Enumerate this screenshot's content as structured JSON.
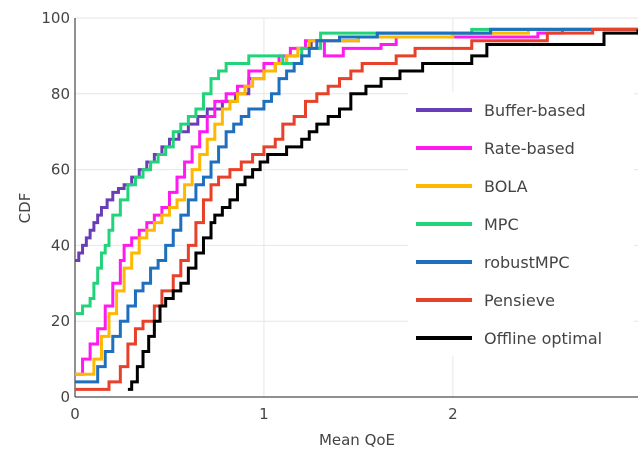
{
  "chart_data": {
    "type": "line",
    "line_shape": "step",
    "xlabel": "Mean QoE",
    "ylabel": "CDF",
    "xlim": [
      0,
      2.98
    ],
    "ylim": [
      0,
      100
    ],
    "x_ticks": [
      "0",
      "1",
      "2"
    ],
    "y_ticks": [
      "0",
      "20",
      "40",
      "60",
      "80",
      "100"
    ],
    "x_tick_values": [
      0,
      1,
      2
    ],
    "y_tick_values": [
      0,
      20,
      40,
      60,
      80,
      100
    ],
    "grid": true,
    "legend_position": "right",
    "series": [
      {
        "name": "Buffer-based",
        "color": "#6a3db8",
        "x": [
          0,
          0.02,
          0.04,
          0.06,
          0.08,
          0.1,
          0.12,
          0.14,
          0.17,
          0.2,
          0.23,
          0.26,
          0.3,
          0.34,
          0.38,
          0.42,
          0.46,
          0.5,
          0.55,
          0.6,
          0.65,
          0.7,
          0.78,
          0.85,
          0.92,
          1.0,
          1.06,
          1.12,
          1.18,
          1.25,
          1.5,
          1.6,
          2.2,
          2.45
        ],
        "y": [
          36,
          38,
          40,
          42,
          44,
          46,
          48,
          50,
          52,
          54,
          55,
          56,
          58,
          60,
          62,
          64,
          66,
          68,
          70,
          72,
          74,
          76,
          78,
          80,
          84,
          86,
          88,
          90,
          92,
          94,
          95,
          96,
          97,
          97
        ]
      },
      {
        "name": "Rate-based",
        "color": "#ff1af0",
        "x": [
          0,
          0.04,
          0.08,
          0.12,
          0.16,
          0.2,
          0.24,
          0.26,
          0.3,
          0.34,
          0.38,
          0.42,
          0.46,
          0.5,
          0.54,
          0.58,
          0.62,
          0.66,
          0.7,
          0.74,
          0.8,
          0.86,
          0.92,
          1.0,
          1.08,
          1.14,
          1.22,
          1.32,
          1.42,
          1.62,
          1.7,
          2.0,
          2.45,
          2.58
        ],
        "y": [
          6,
          10,
          14,
          18,
          24,
          30,
          36,
          40,
          42,
          44,
          46,
          48,
          50,
          54,
          58,
          62,
          66,
          70,
          74,
          78,
          80,
          82,
          86,
          88,
          90,
          92,
          94,
          90,
          92,
          93,
          95,
          95,
          96,
          97
        ]
      },
      {
        "name": "BOLA",
        "color": "#ffb800",
        "x": [
          0,
          0.1,
          0.14,
          0.18,
          0.22,
          0.26,
          0.3,
          0.34,
          0.38,
          0.42,
          0.46,
          0.5,
          0.54,
          0.58,
          0.62,
          0.66,
          0.7,
          0.74,
          0.78,
          0.82,
          0.86,
          0.9,
          0.94,
          1.0,
          1.06,
          1.12,
          1.18,
          1.24,
          1.5,
          2.0,
          2.2,
          2.4
        ],
        "y": [
          6,
          10,
          16,
          22,
          28,
          34,
          38,
          42,
          44,
          46,
          48,
          50,
          52,
          56,
          60,
          64,
          68,
          72,
          76,
          78,
          80,
          82,
          84,
          86,
          88,
          90,
          92,
          94,
          95,
          96,
          96,
          97
        ]
      },
      {
        "name": "MPC",
        "color": "#22d37a",
        "x": [
          0,
          0.04,
          0.08,
          0.1,
          0.12,
          0.14,
          0.16,
          0.18,
          0.2,
          0.24,
          0.28,
          0.32,
          0.36,
          0.4,
          0.44,
          0.48,
          0.52,
          0.56,
          0.6,
          0.64,
          0.68,
          0.72,
          0.76,
          0.8,
          0.86,
          0.92,
          1.0,
          1.1,
          1.2,
          1.3,
          2.06,
          2.1
        ],
        "y": [
          22,
          24,
          26,
          30,
          34,
          38,
          40,
          44,
          48,
          52,
          56,
          58,
          60,
          62,
          64,
          66,
          70,
          72,
          74,
          76,
          80,
          84,
          86,
          88,
          88,
          90,
          90,
          88,
          92,
          96,
          96,
          97
        ]
      },
      {
        "name": "robustMPC",
        "color": "#1f6fbf",
        "x": [
          0,
          0.12,
          0.16,
          0.2,
          0.24,
          0.28,
          0.32,
          0.36,
          0.4,
          0.44,
          0.48,
          0.52,
          0.56,
          0.6,
          0.64,
          0.68,
          0.72,
          0.76,
          0.8,
          0.84,
          0.88,
          0.92,
          1.0,
          1.04,
          1.08,
          1.12,
          1.16,
          1.2,
          1.24,
          1.28,
          1.4,
          1.6,
          2.2
        ],
        "y": [
          4,
          8,
          12,
          16,
          20,
          24,
          28,
          30,
          34,
          36,
          40,
          44,
          48,
          52,
          56,
          58,
          62,
          66,
          70,
          72,
          74,
          76,
          78,
          80,
          84,
          86,
          88,
          90,
          92,
          94,
          95,
          96,
          97
        ]
      },
      {
        "name": "Pensieve",
        "color": "#e8412a",
        "x": [
          0,
          0.18,
          0.24,
          0.28,
          0.32,
          0.36,
          0.42,
          0.46,
          0.52,
          0.56,
          0.6,
          0.64,
          0.68,
          0.72,
          0.76,
          0.82,
          0.88,
          0.94,
          1.0,
          1.06,
          1.1,
          1.16,
          1.22,
          1.28,
          1.34,
          1.4,
          1.46,
          1.52,
          1.6,
          1.7,
          1.8,
          2.1,
          2.5,
          2.74,
          2.8
        ],
        "y": [
          2,
          4,
          8,
          14,
          18,
          20,
          24,
          28,
          32,
          36,
          40,
          46,
          52,
          56,
          58,
          60,
          62,
          64,
          66,
          68,
          72,
          74,
          78,
          80,
          82,
          84,
          86,
          88,
          88,
          90,
          92,
          94,
          96,
          97,
          97
        ]
      },
      {
        "name": "Offline optimal",
        "color": "#000000",
        "x": [
          0.28,
          0.3,
          0.33,
          0.36,
          0.39,
          0.42,
          0.45,
          0.48,
          0.52,
          0.56,
          0.6,
          0.64,
          0.68,
          0.72,
          0.74,
          0.78,
          0.82,
          0.86,
          0.9,
          0.94,
          0.98,
          1.02,
          1.12,
          1.2,
          1.24,
          1.28,
          1.34,
          1.4,
          1.46,
          1.54,
          1.62,
          1.72,
          1.84,
          2.1,
          2.18,
          2.8,
          2.98
        ],
        "y": [
          2,
          4,
          8,
          12,
          16,
          20,
          24,
          26,
          28,
          30,
          34,
          38,
          42,
          46,
          48,
          50,
          52,
          56,
          58,
          60,
          62,
          64,
          66,
          68,
          70,
          72,
          74,
          76,
          80,
          82,
          84,
          86,
          88,
          90,
          93,
          96,
          97
        ]
      }
    ]
  }
}
